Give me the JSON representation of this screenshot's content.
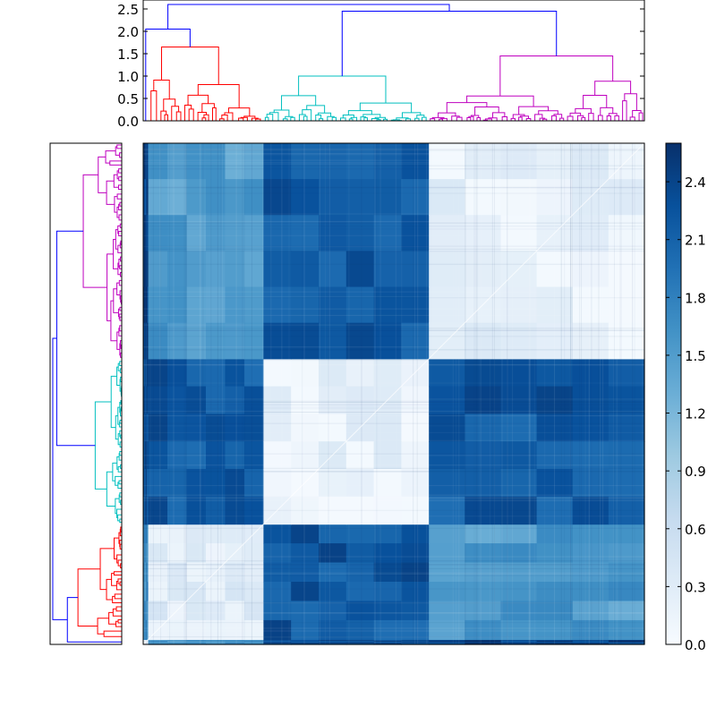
{
  "chart_data": [
    {
      "type": "heatmap",
      "title": "",
      "description_labels": [],
      "colormap": "Blues",
      "color_range": [
        0.0,
        2.6
      ],
      "colorbar_ticks": [
        "0.0",
        "0.3",
        "0.6",
        "0.9",
        "1.2",
        "1.5",
        "1.8",
        "2.1",
        "2.4"
      ],
      "colorbar_tick_values": [
        0.0,
        0.3,
        0.6,
        0.9,
        1.2,
        1.5,
        1.8,
        2.1,
        2.4
      ],
      "clusters": [
        {
          "name": "green",
          "color": "#008000",
          "size": 0.01
        },
        {
          "name": "red",
          "color": "#ff0000",
          "size": 0.23
        },
        {
          "name": "cyan",
          "color": "#00bfbf",
          "size": 0.33
        },
        {
          "name": "magenta",
          "color": "#bf00bf",
          "size": 0.43
        }
      ],
      "column_order": [
        "green",
        "red",
        "cyan",
        "magenta"
      ],
      "row_order_top_to_bottom": [
        "magenta",
        "cyan",
        "red",
        "green"
      ],
      "block_distances": [
        [
          0.2,
          1.6,
          2.3,
          2.4
        ],
        [
          1.6,
          0.3,
          2.2,
          1.5
        ],
        [
          2.3,
          2.2,
          0.2,
          2.2
        ],
        [
          2.4,
          1.5,
          2.2,
          0.2
        ]
      ]
    },
    {
      "type": "line",
      "role": "top-dendrogram",
      "ylim": [
        0,
        2.7
      ],
      "yticks": [
        "0.0",
        "0.5",
        "1.0",
        "1.5",
        "2.0",
        "2.5"
      ],
      "ytick_values": [
        0.0,
        0.5,
        1.0,
        1.5,
        2.0,
        2.5
      ],
      "merge_heights": {
        "root": 2.6,
        "cyan_magenta": 2.45,
        "green_red": 2.05,
        "red_top": 1.65,
        "cyan_top": 1.0,
        "magenta_top": 1.45,
        "link_color": "#0000ff"
      }
    },
    {
      "type": "line",
      "role": "left-dendrogram",
      "xlim": [
        0,
        2.7
      ],
      "link_color": "#0000ff"
    }
  ]
}
